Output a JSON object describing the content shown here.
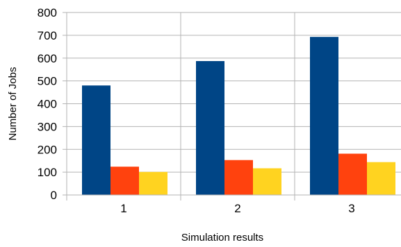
{
  "chart_data": {
    "type": "bar",
    "title": "",
    "xlabel": "Simulation results",
    "ylabel": "Number of Jobs",
    "categories": [
      "1",
      "2",
      "3"
    ],
    "series": [
      {
        "color": "#004586",
        "values": [
          480,
          587,
          693
        ]
      },
      {
        "color": "#ff420e",
        "values": [
          124,
          153,
          181
        ]
      },
      {
        "color": "#ffd320",
        "values": [
          101,
          117,
          144
        ]
      }
    ],
    "ylim": [
      0,
      800
    ],
    "yticks": [
      0,
      100,
      200,
      300,
      400,
      500,
      600,
      700,
      800
    ],
    "ytick_labels": [
      "0",
      "100",
      "200",
      "300",
      "400",
      "500",
      "600",
      "700",
      "800"
    ],
    "grid": {
      "horizontal": true,
      "vertical": true
    },
    "legend": "none"
  }
}
